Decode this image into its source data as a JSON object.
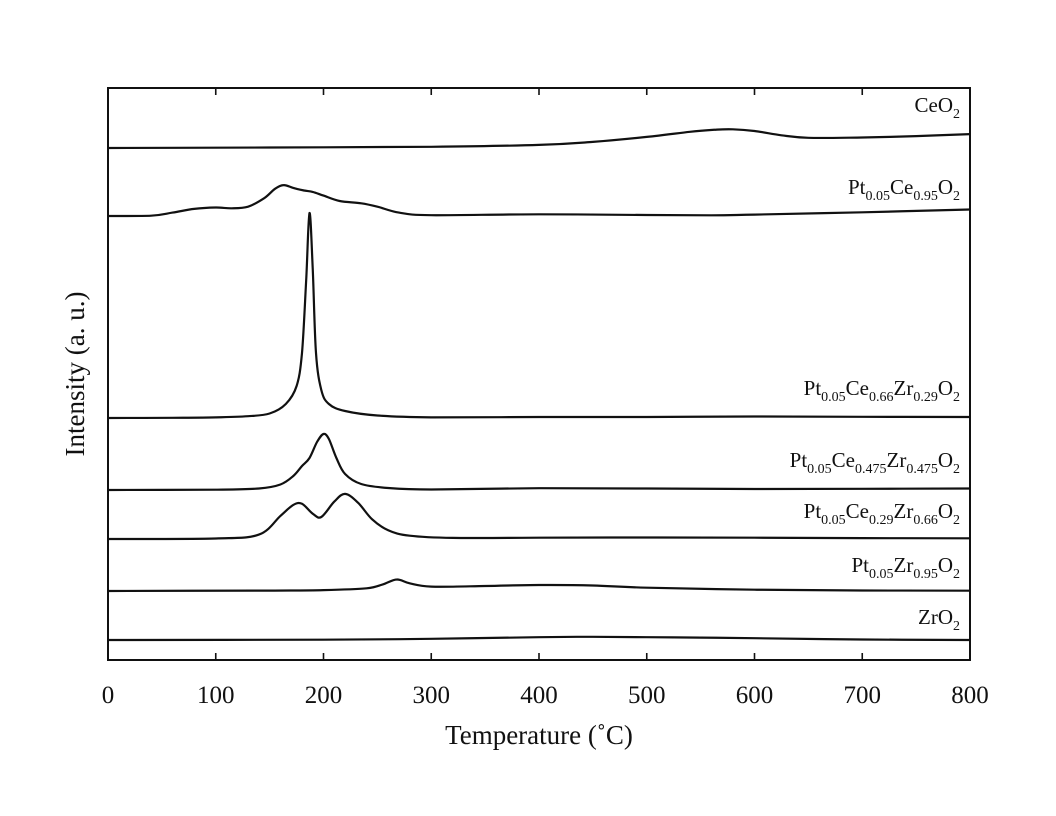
{
  "chart_data": {
    "type": "line",
    "xlabel": "Temperature (˚C)",
    "ylabel": "Intensity (a. u.)",
    "xlim": [
      0,
      800
    ],
    "x_ticks": [
      "0",
      "100",
      "200",
      "300",
      "400",
      "500",
      "600",
      "700",
      "800"
    ],
    "y_ticks_shown": false,
    "grid": false,
    "legend": "inline labels at right end of each curve",
    "stacked_offset": true,
    "series": [
      {
        "name": "CeO2",
        "label_parts": [
          {
            "t": "CeO"
          },
          {
            "t": "2",
            "sub": true
          }
        ],
        "baseline": 0.0,
        "points": [
          [
            0,
            0
          ],
          [
            100,
            0.02
          ],
          [
            200,
            0.04
          ],
          [
            300,
            0.07
          ],
          [
            400,
            0.18
          ],
          [
            450,
            0.36
          ],
          [
            500,
            0.65
          ],
          [
            540,
            0.95
          ],
          [
            565,
            1.08
          ],
          [
            580,
            1.1
          ],
          [
            600,
            1.0
          ],
          [
            625,
            0.75
          ],
          [
            650,
            0.6
          ],
          [
            700,
            0.62
          ],
          [
            750,
            0.7
          ],
          [
            800,
            0.82
          ]
        ]
      },
      {
        "name": "Pt0.05Ce0.95O2",
        "label_parts": [
          {
            "t": "Pt"
          },
          {
            "t": "0.05",
            "sub": true
          },
          {
            "t": "Ce"
          },
          {
            "t": "0.95",
            "sub": true
          },
          {
            "t": "O"
          },
          {
            "t": "2",
            "sub": true
          }
        ],
        "baseline": 0.0,
        "points": [
          [
            0,
            0
          ],
          [
            40,
            0.02
          ],
          [
            60,
            0.2
          ],
          [
            80,
            0.42
          ],
          [
            100,
            0.5
          ],
          [
            115,
            0.45
          ],
          [
            130,
            0.55
          ],
          [
            145,
            1.05
          ],
          [
            155,
            1.6
          ],
          [
            163,
            1.82
          ],
          [
            172,
            1.65
          ],
          [
            182,
            1.5
          ],
          [
            190,
            1.42
          ],
          [
            200,
            1.2
          ],
          [
            215,
            0.88
          ],
          [
            235,
            0.75
          ],
          [
            250,
            0.55
          ],
          [
            270,
            0.2
          ],
          [
            300,
            0.05
          ],
          [
            400,
            0.1
          ],
          [
            500,
            0.06
          ],
          [
            560,
            0.04
          ],
          [
            600,
            0.08
          ],
          [
            700,
            0.22
          ],
          [
            800,
            0.38
          ]
        ]
      },
      {
        "name": "Pt0.05Ce0.66Zr0.29O2",
        "label_parts": [
          {
            "t": "Pt"
          },
          {
            "t": "0.05",
            "sub": true
          },
          {
            "t": "Ce"
          },
          {
            "t": "0.66",
            "sub": true
          },
          {
            "t": "Zr"
          },
          {
            "t": "0.29",
            "sub": true
          },
          {
            "t": "O"
          },
          {
            "t": "2",
            "sub": true
          }
        ],
        "baseline": 0.0,
        "points": [
          [
            0,
            0
          ],
          [
            60,
            0.02
          ],
          [
            100,
            0.06
          ],
          [
            130,
            0.18
          ],
          [
            150,
            0.45
          ],
          [
            165,
            1.4
          ],
          [
            175,
            3.2
          ],
          [
            180,
            6.5
          ],
          [
            184,
            14
          ],
          [
            187,
            20.5
          ],
          [
            190,
            15
          ],
          [
            193,
            6.5
          ],
          [
            198,
            2.8
          ],
          [
            205,
            1.4
          ],
          [
            220,
            0.7
          ],
          [
            250,
            0.25
          ],
          [
            300,
            0.06
          ],
          [
            400,
            0.1
          ],
          [
            500,
            0.1
          ],
          [
            600,
            0.15
          ],
          [
            700,
            0.12
          ],
          [
            800,
            0.1
          ]
        ]
      },
      {
        "name": "Pt0.05Ce0.475Zr0.475O2",
        "label_parts": [
          {
            "t": "Pt"
          },
          {
            "t": "0.05",
            "sub": true
          },
          {
            "t": "Ce"
          },
          {
            "t": "0.475",
            "sub": true
          },
          {
            "t": "Zr"
          },
          {
            "t": "0.475",
            "sub": true
          },
          {
            "t": "O"
          },
          {
            "t": "2",
            "sub": true
          }
        ],
        "baseline": 0.0,
        "points": [
          [
            0,
            0
          ],
          [
            100,
            0.03
          ],
          [
            140,
            0.15
          ],
          [
            160,
            0.55
          ],
          [
            172,
            1.4
          ],
          [
            180,
            2.4
          ],
          [
            187,
            3.2
          ],
          [
            194,
            4.8
          ],
          [
            200,
            5.6
          ],
          [
            205,
            5.1
          ],
          [
            212,
            3.2
          ],
          [
            220,
            1.6
          ],
          [
            235,
            0.6
          ],
          [
            260,
            0.2
          ],
          [
            300,
            0.05
          ],
          [
            400,
            0.18
          ],
          [
            500,
            0.15
          ],
          [
            600,
            0.1
          ],
          [
            700,
            0.12
          ],
          [
            800,
            0.15
          ]
        ]
      },
      {
        "name": "Pt0.05Ce0.29Zr0.66O2",
        "label_parts": [
          {
            "t": "Pt"
          },
          {
            "t": "0.05",
            "sub": true
          },
          {
            "t": "Ce"
          },
          {
            "t": "0.29",
            "sub": true
          },
          {
            "t": "Zr"
          },
          {
            "t": "0.66",
            "sub": true
          },
          {
            "t": "O"
          },
          {
            "t": "2",
            "sub": true
          }
        ],
        "baseline": 0.0,
        "points": [
          [
            0,
            0
          ],
          [
            100,
            0.05
          ],
          [
            140,
            0.4
          ],
          [
            160,
            2.1
          ],
          [
            172,
            3.1
          ],
          [
            180,
            3.2
          ],
          [
            190,
            2.3
          ],
          [
            198,
            2.0
          ],
          [
            210,
            3.4
          ],
          [
            220,
            4.1
          ],
          [
            232,
            3.3
          ],
          [
            245,
            1.8
          ],
          [
            260,
            0.8
          ],
          [
            280,
            0.3
          ],
          [
            320,
            0.1
          ],
          [
            400,
            0.12
          ],
          [
            500,
            0.14
          ],
          [
            600,
            0.12
          ],
          [
            700,
            0.08
          ],
          [
            800,
            0.06
          ]
        ]
      },
      {
        "name": "Pt0.05Zr0.95O2",
        "label_parts": [
          {
            "t": "Pt"
          },
          {
            "t": "0.05",
            "sub": true
          },
          {
            "t": "Zr"
          },
          {
            "t": "0.95",
            "sub": true
          },
          {
            "t": "O"
          },
          {
            "t": "2",
            "sub": true
          }
        ],
        "baseline": 0.0,
        "points": [
          [
            0,
            0
          ],
          [
            150,
            0.04
          ],
          [
            200,
            0.08
          ],
          [
            240,
            0.25
          ],
          [
            255,
            0.6
          ],
          [
            268,
            1.05
          ],
          [
            280,
            0.7
          ],
          [
            300,
            0.4
          ],
          [
            350,
            0.45
          ],
          [
            400,
            0.55
          ],
          [
            450,
            0.5
          ],
          [
            500,
            0.3
          ],
          [
            600,
            0.12
          ],
          [
            700,
            0.05
          ],
          [
            800,
            0.03
          ]
        ]
      },
      {
        "name": "ZrO2",
        "label_parts": [
          {
            "t": "ZrO"
          },
          {
            "t": "2",
            "sub": true
          }
        ],
        "baseline": 0.0,
        "points": [
          [
            0,
            0
          ],
          [
            200,
            0.04
          ],
          [
            300,
            0.15
          ],
          [
            400,
            0.35
          ],
          [
            450,
            0.4
          ],
          [
            500,
            0.35
          ],
          [
            550,
            0.3
          ],
          [
            600,
            0.22
          ],
          [
            700,
            0.06
          ],
          [
            800,
            0.0
          ]
        ]
      }
    ]
  }
}
